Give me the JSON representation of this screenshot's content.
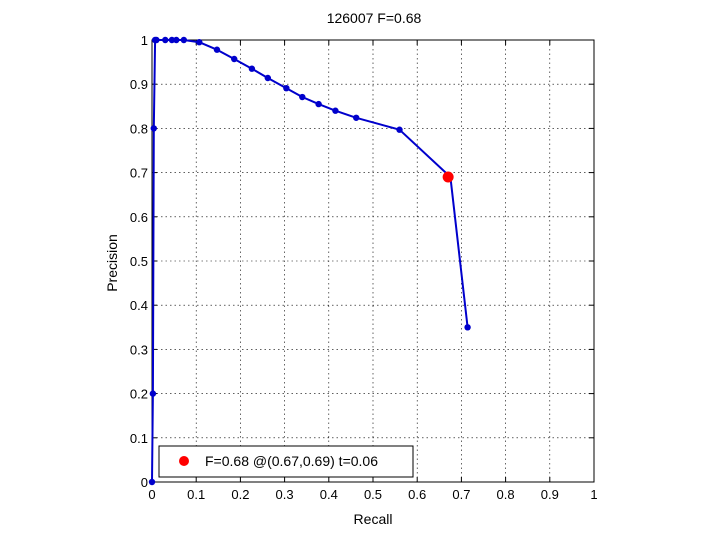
{
  "chart_data": {
    "type": "line",
    "title": "126007 F=0.68",
    "xlabel": "Recall",
    "ylabel": "Precision",
    "xlim": [
      0,
      1
    ],
    "ylim": [
      0,
      1
    ],
    "xticks": [
      "0",
      "0.1",
      "0.2",
      "0.3",
      "0.4",
      "0.5",
      "0.6",
      "0.7",
      "0.8",
      "0.9",
      "1"
    ],
    "yticks": [
      "0",
      "0.1",
      "0.2",
      "0.3",
      "0.4",
      "0.5",
      "0.6",
      "0.7",
      "0.8",
      "0.9",
      "1"
    ],
    "grid": true,
    "legend_position": "bottom-left",
    "series": [
      {
        "color": "#0000cc",
        "x": [
          0.0,
          0.002,
          0.004,
          0.007,
          0.01,
          0.03,
          0.045,
          0.055,
          0.072,
          0.107,
          0.147,
          0.186,
          0.226,
          0.262,
          0.304,
          0.34,
          0.377,
          0.415,
          0.462,
          0.56,
          0.675,
          0.714
        ],
        "y": [
          0.0,
          0.2,
          0.8,
          1.0,
          1.0,
          1.0,
          1.0,
          1.0,
          1.0,
          0.995,
          0.978,
          0.957,
          0.935,
          0.914,
          0.891,
          0.871,
          0.855,
          0.84,
          0.824,
          0.797,
          0.69,
          0.35
        ]
      }
    ],
    "best_point": {
      "x": 0.67,
      "y": 0.69,
      "color": "#ff0000",
      "label": "F=0.68 @(0.67,0.69) t=0.06"
    }
  }
}
